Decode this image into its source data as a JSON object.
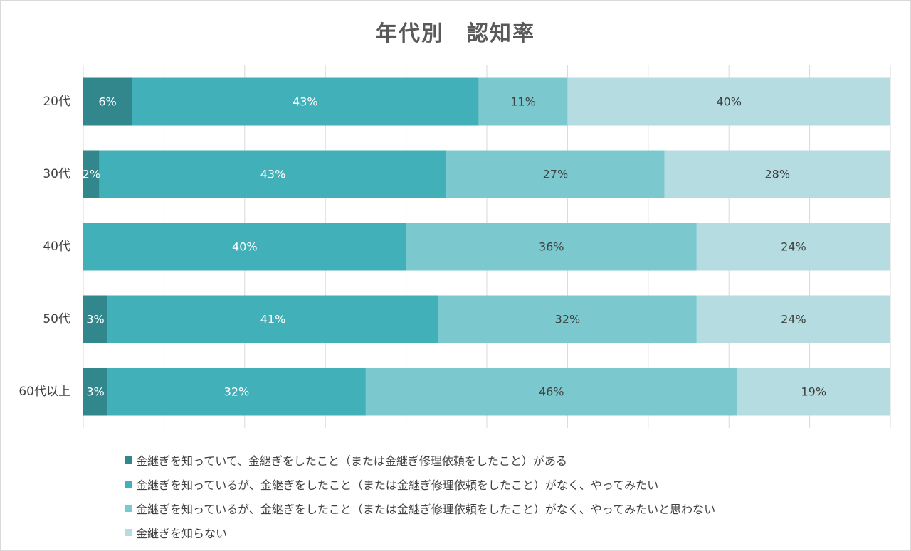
{
  "chart_data": {
    "type": "bar",
    "orientation": "horizontal",
    "stacked": "percent",
    "title": "年代別　認知率",
    "categories": [
      "20代",
      "30代",
      "40代",
      "50代",
      "60代以上"
    ],
    "series": [
      {
        "name": "金継ぎを知っていて、金継ぎをしたこと（または金継ぎ修理依頼をしたこと）がある",
        "color": "#31878c",
        "label_color": "#ffffff",
        "values": [
          6,
          2,
          0,
          3,
          3
        ]
      },
      {
        "name": "金継ぎを知っているが、金継ぎをしたこと（または金継ぎ修理依頼をしたこと）がなく、やってみたい",
        "color": "#41b0b9",
        "label_color": "#ffffff",
        "values": [
          43,
          43,
          40,
          41,
          32
        ]
      },
      {
        "name": "金継ぎを知っているが、金継ぎをしたこと（または金継ぎ修理依頼をしたこと）がなく、やってみたいと思わない",
        "color": "#7bc9cf",
        "label_color": "#404040",
        "values": [
          11,
          27,
          36,
          32,
          46
        ]
      },
      {
        "name": "金継ぎを知らない",
        "color": "#b5dde1",
        "label_color": "#404040",
        "values": [
          40,
          28,
          24,
          24,
          19
        ]
      }
    ],
    "xlim": [
      0,
      100
    ],
    "grid": true,
    "legend": "bottom"
  }
}
